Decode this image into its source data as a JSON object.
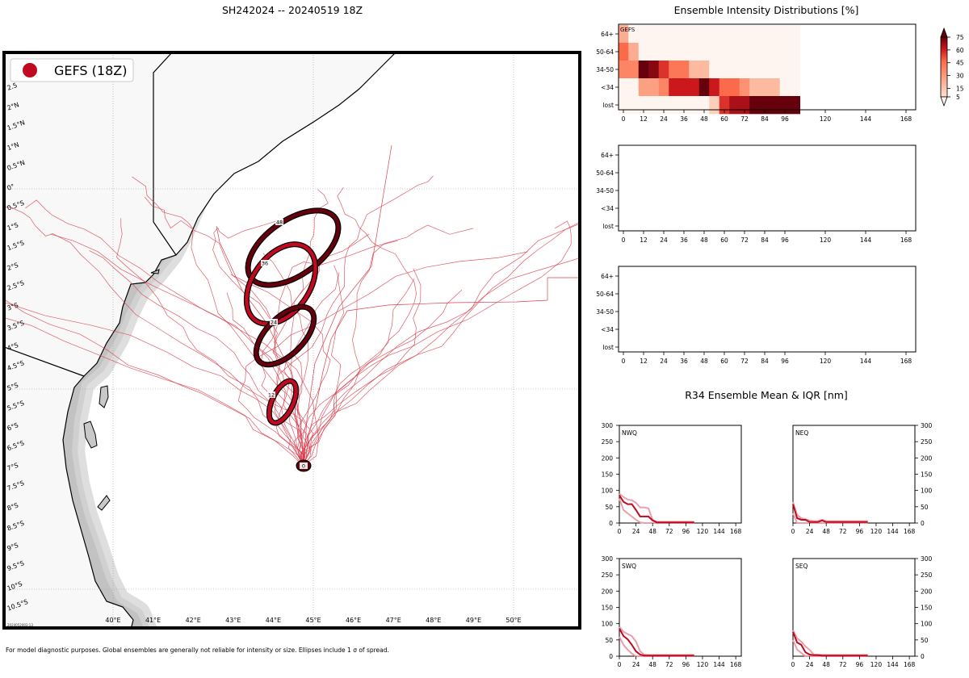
{
  "title": "SH242024 -- 20240519 18Z",
  "footnote": "For model diagnostic purposes. Global ensembles are generally not reliable for intensity or size. Ellipses include 1 σ of spread.",
  "map": {
    "legend_label": "GEFS (18Z)",
    "timestamp": "2024052003:13",
    "lon_labels": [
      "40°E",
      "41°E",
      "42°E",
      "43°E",
      "44°E",
      "45°E",
      "46°E",
      "47°E",
      "48°E",
      "49°E",
      "50°E"
    ],
    "lat_labels": [
      "2.5",
      "2°N",
      "1.5°N",
      "1°N",
      "0.5°N",
      "0°",
      "0.5°S",
      "1°S",
      "1.5°S",
      "2°S",
      "2.5°S",
      "3°S",
      "3.5°S",
      "4°S",
      "4.5°S",
      "5°S",
      "5.5°S",
      "6°S",
      "6.5°S",
      "7°S",
      "7.5°S",
      "8°S",
      "8.5°S",
      "9°S",
      "9.5°S",
      "10°S",
      "10.5°S"
    ],
    "ellipse_labels": [
      "0",
      "12",
      "24",
      "36",
      "48"
    ]
  },
  "colors": {
    "ens_red": "#c00a20",
    "dark_red": "#67000d",
    "track": "#d9404f"
  },
  "intensity": {
    "title": "Ensemble Intensity Distributions [%]",
    "rows": [
      "64+",
      "50-64",
      "34-50",
      "<34",
      "lost"
    ],
    "x_ticks": [
      "0",
      "12",
      "24",
      "36",
      "48",
      "60",
      "72",
      "84",
      "96",
      "120",
      "144",
      "168"
    ],
    "panel_label": "GEFS",
    "colorbar_ticks": [
      "75",
      "60",
      "45",
      "30",
      "15",
      "5"
    ]
  },
  "chart_data": [
    {
      "type": "heatmap",
      "title": "Ensemble Intensity Distributions [%]",
      "panel": "GEFS",
      "x": [
        0,
        6,
        12,
        18,
        24,
        30,
        36,
        42,
        48,
        54,
        60,
        66,
        72,
        78,
        84,
        90,
        96,
        102
      ],
      "y": [
        "64+",
        "50-64",
        "34-50",
        "<34",
        "lost"
      ],
      "values": [
        [
          20,
          2,
          2,
          2,
          2,
          2,
          2,
          2,
          2,
          2,
          2,
          2,
          2,
          2,
          2,
          2,
          2,
          2
        ],
        [
          45,
          20,
          2,
          2,
          2,
          2,
          2,
          2,
          2,
          2,
          2,
          2,
          2,
          2,
          2,
          2,
          2,
          2
        ],
        [
          35,
          35,
          85,
          70,
          55,
          40,
          40,
          15,
          15,
          2,
          2,
          2,
          2,
          2,
          2,
          2,
          2,
          2
        ],
        [
          2,
          2,
          25,
          25,
          35,
          60,
          60,
          60,
          85,
          60,
          45,
          45,
          30,
          15,
          15,
          15,
          2,
          2
        ],
        [
          2,
          2,
          2,
          2,
          2,
          2,
          2,
          2,
          2,
          10,
          55,
          65,
          65,
          80,
          85,
          85,
          85,
          90
        ]
      ],
      "colorbar_range": [
        5,
        75
      ]
    },
    {
      "type": "line",
      "title": "R34 Ensemble Mean & IQR [nm]",
      "x_ticks": [
        0,
        24,
        48,
        72,
        96,
        120,
        144,
        168
      ],
      "ylim": [
        0,
        300
      ],
      "y_ticks": [
        0,
        50,
        100,
        150,
        200,
        250,
        300
      ],
      "panels": [
        {
          "name": "NWQ",
          "x": [
            0,
            6,
            12,
            18,
            24,
            30,
            36,
            42,
            48,
            54,
            60,
            66,
            72,
            78,
            84,
            90,
            96,
            102,
            108
          ],
          "mean": [
            85,
            65,
            58,
            58,
            40,
            20,
            20,
            20,
            8,
            2,
            2,
            2,
            2,
            2,
            2,
            2,
            2,
            2,
            2
          ],
          "q75": [
            90,
            80,
            72,
            70,
            62,
            48,
            48,
            45,
            10,
            4,
            4,
            4,
            4,
            4,
            4,
            4,
            4,
            4,
            4
          ],
          "q25": [
            75,
            40,
            30,
            20,
            10,
            2,
            0,
            0,
            0,
            0,
            0,
            0,
            0,
            0,
            0,
            0,
            0,
            0,
            0
          ]
        },
        {
          "name": "NEQ",
          "x": [
            0,
            6,
            12,
            18,
            24,
            30,
            36,
            42,
            48,
            54,
            60,
            66,
            72,
            78,
            84,
            90,
            96,
            102,
            108
          ],
          "mean": [
            58,
            15,
            10,
            10,
            3,
            3,
            3,
            8,
            3,
            3,
            3,
            3,
            3,
            3,
            3,
            3,
            3,
            3,
            3
          ],
          "q75": [
            65,
            25,
            15,
            12,
            8,
            6,
            6,
            10,
            6,
            6,
            6,
            6,
            6,
            6,
            6,
            6,
            6,
            6,
            6
          ],
          "q25": [
            30,
            0,
            0,
            0,
            0,
            0,
            0,
            0,
            0,
            0,
            0,
            0,
            0,
            0,
            0,
            0,
            0,
            0,
            0
          ]
        },
        {
          "name": "SWQ",
          "x": [
            0,
            6,
            12,
            18,
            24,
            30,
            36,
            42,
            48,
            54,
            60,
            66,
            72,
            78,
            84,
            90,
            96,
            102,
            108
          ],
          "mean": [
            85,
            62,
            52,
            35,
            15,
            5,
            2,
            2,
            2,
            2,
            2,
            2,
            2,
            2,
            2,
            2,
            2,
            2,
            2
          ],
          "q75": [
            90,
            75,
            68,
            62,
            45,
            15,
            5,
            4,
            4,
            4,
            4,
            4,
            4,
            4,
            4,
            4,
            4,
            4,
            4
          ],
          "q25": [
            60,
            35,
            20,
            8,
            0,
            0,
            0,
            0,
            0,
            0,
            0,
            0,
            0,
            0,
            0,
            0,
            0,
            0,
            0
          ]
        },
        {
          "name": "SEQ",
          "x": [
            0,
            6,
            12,
            18,
            24,
            30,
            36,
            42,
            48,
            54,
            60,
            66,
            72,
            78,
            84,
            90,
            96,
            102,
            108
          ],
          "mean": [
            75,
            42,
            35,
            12,
            5,
            3,
            3,
            2,
            2,
            2,
            2,
            2,
            2,
            2,
            2,
            2,
            2,
            2,
            2
          ],
          "q75": [
            80,
            55,
            45,
            30,
            20,
            5,
            5,
            4,
            4,
            4,
            4,
            4,
            4,
            4,
            4,
            4,
            4,
            4,
            4
          ],
          "q25": [
            50,
            20,
            10,
            0,
            0,
            0,
            0,
            0,
            0,
            0,
            0,
            0,
            0,
            0,
            0,
            0,
            0,
            0,
            0
          ]
        }
      ]
    }
  ]
}
